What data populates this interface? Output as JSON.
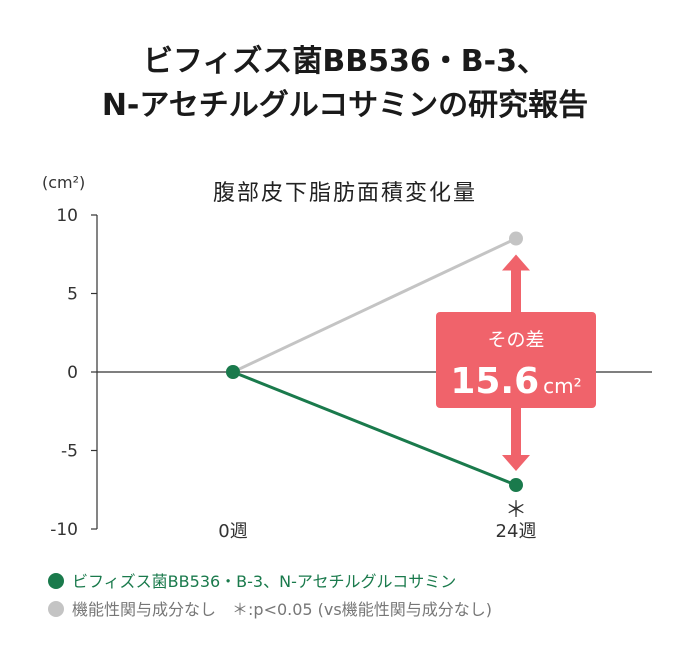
{
  "title_line1": "ビフィズス菌BB536・B-3、",
  "title_line2": "N-アセチルグルコサミンの研究報告",
  "chart_data": {
    "type": "line",
    "title": "腹部皮下脂肪面積変化量",
    "unit_label": "(cm²)",
    "x_categories": [
      "0週",
      "24週"
    ],
    "y_ticks": [
      "10",
      "5",
      "0",
      "-5",
      "-10"
    ],
    "ylim": [
      -10,
      10
    ],
    "series": [
      {
        "name": "ビフィズス菌BB536・B-3、N-アセチルグルコサミン",
        "color": "#1a7a4c",
        "values": [
          0,
          -7.2
        ]
      },
      {
        "name": "機能性関与成分なし",
        "color": "#c4c4c4",
        "values": [
          0,
          8.5
        ]
      }
    ],
    "significance_marker": "＊",
    "annotation": {
      "label": "その差",
      "value": "15.6",
      "unit": "cm²",
      "color": "#f0636b"
    }
  },
  "legend_note": "＊:p<0.05 (vs機能性関与成分なし)"
}
